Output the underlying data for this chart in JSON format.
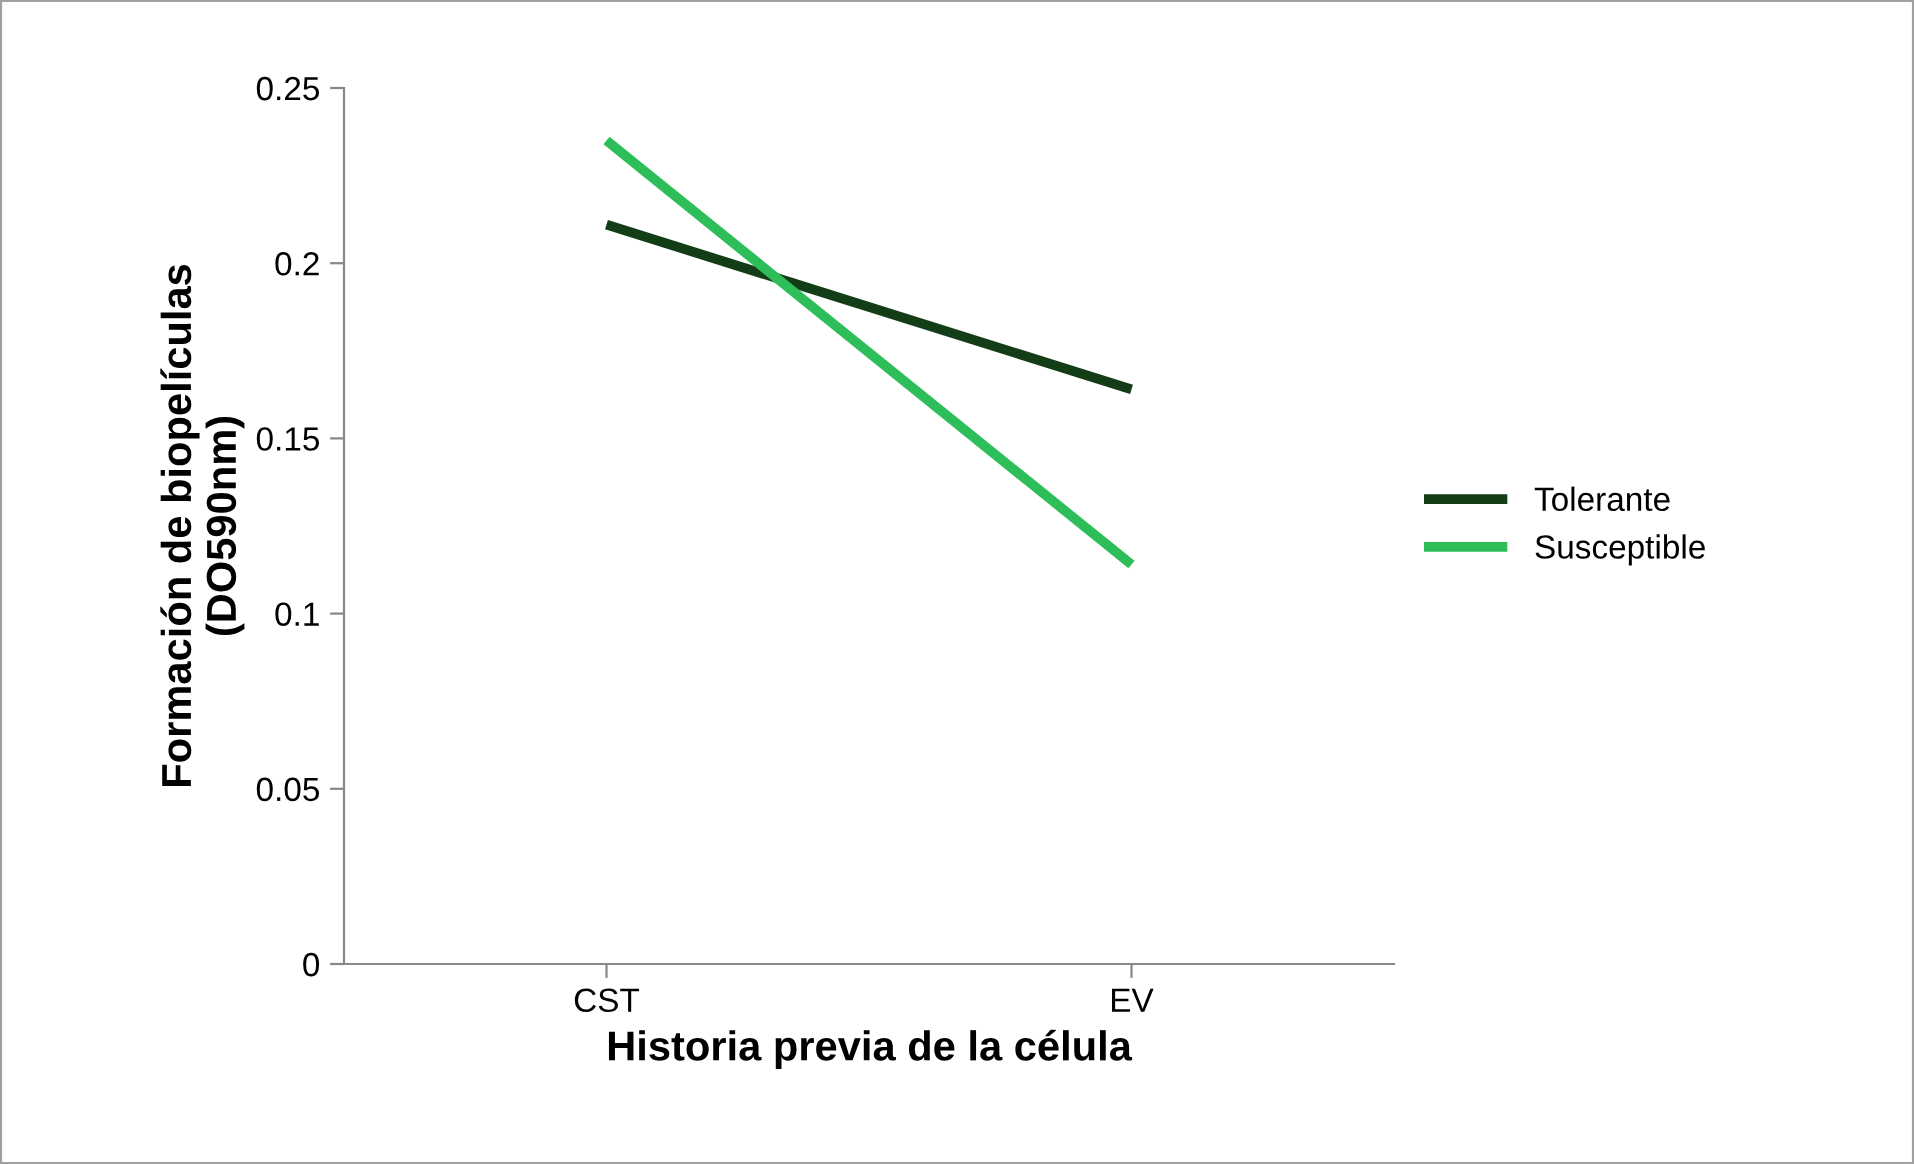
{
  "chart_data": {
    "type": "line",
    "xlabel": "Historia previa de la célula",
    "ylabel": "Formación de biopelículas\n(DO590nm)",
    "categories": [
      "CST",
      "EV"
    ],
    "series": [
      {
        "name": "Tolerante",
        "color": "#123d16",
        "values": [
          0.211,
          0.164
        ]
      },
      {
        "name": "Susceptible",
        "color": "#2dbe5a",
        "values": [
          0.235,
          0.114
        ]
      }
    ],
    "ylim": [
      0,
      0.25
    ],
    "yticks": [
      {
        "value": 0,
        "label": "0"
      },
      0.05,
      0.1,
      0.15,
      0.2,
      0.25
    ],
    "grid": false,
    "legend": "right",
    "marker": "none",
    "line_style": "solid"
  }
}
